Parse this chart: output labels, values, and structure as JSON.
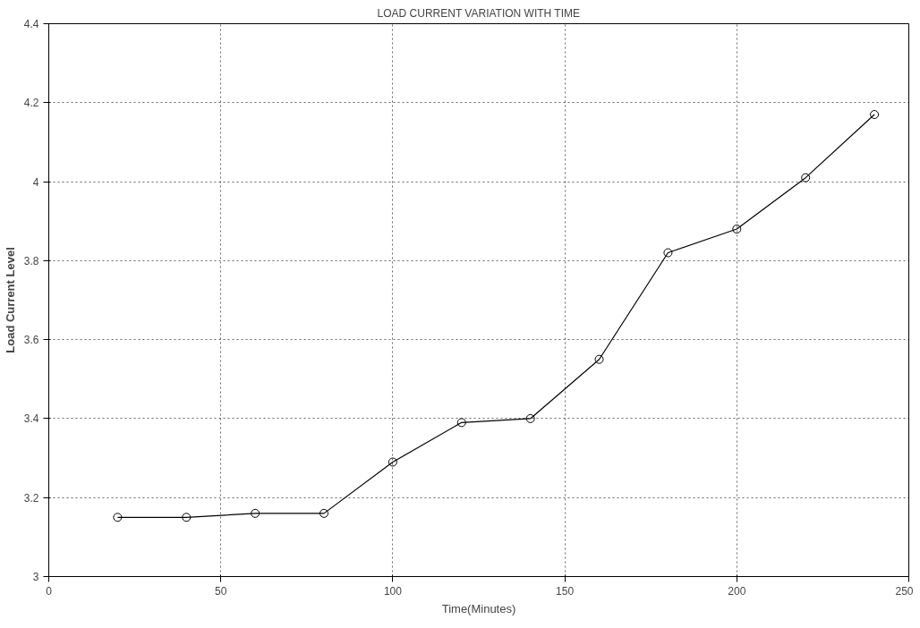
{
  "chart_data": {
    "type": "line",
    "title": "LOAD CURRENT VARIATION WITH TIME",
    "xlabel": "Time(Minutes)",
    "ylabel": "Load Current Level",
    "x": [
      20,
      40,
      60,
      80,
      100,
      120,
      140,
      160,
      180,
      200,
      220,
      240
    ],
    "series": [
      {
        "color": "#000000",
        "values": [
          3.15,
          3.15,
          3.16,
          3.16,
          3.29,
          3.39,
          3.4,
          3.55,
          3.82,
          3.88,
          4.01,
          4.17
        ]
      }
    ],
    "xlim": [
      0,
      250
    ],
    "xticks": [
      0,
      50,
      100,
      150,
      200,
      250
    ],
    "ylim": [
      3,
      4.4
    ],
    "yticks": [
      3,
      3.2,
      3.4,
      3.6,
      3.8,
      4,
      4.2,
      4.4
    ],
    "grid": true,
    "marker": "circle",
    "line_style": "solid"
  }
}
